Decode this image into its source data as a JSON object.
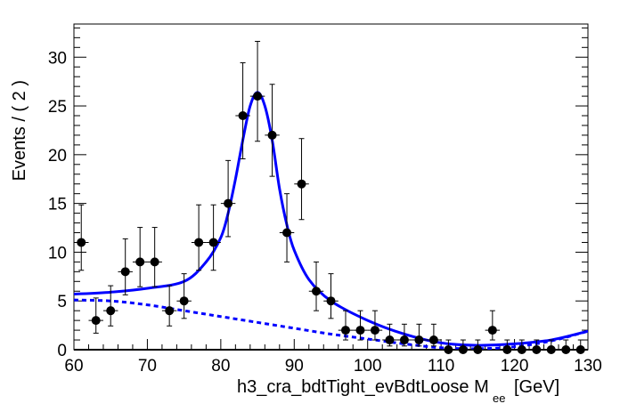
{
  "chart_data": {
    "type": "scatter",
    "title": "",
    "xlabel": "h3_cra_bdtTight_evBdtLoose  M",
    "xlabel_sub": "ee",
    "xlabel_unit": "[GeV]",
    "ylabel": "Events / ( 2 )",
    "xlim": [
      60,
      130
    ],
    "ylim": [
      0,
      33.4
    ],
    "xticks": [
      "60",
      "70",
      "80",
      "90",
      "100",
      "110",
      "120",
      "130"
    ],
    "yticks": [
      "0",
      "5",
      "10",
      "15",
      "20",
      "25",
      "30"
    ],
    "bin_width": 2,
    "data": {
      "x": [
        61,
        63,
        65,
        67,
        69,
        71,
        73,
        75,
        77,
        79,
        81,
        83,
        85,
        87,
        89,
        91,
        93,
        95,
        97,
        99,
        101,
        103,
        105,
        107,
        109,
        111,
        113,
        115,
        117,
        119,
        121,
        123,
        125,
        127,
        129
      ],
      "y": [
        11,
        3,
        4,
        8,
        9,
        9,
        4,
        5,
        11,
        11,
        15,
        24,
        26,
        22,
        12,
        17,
        6,
        5,
        2,
        2,
        2,
        1,
        1,
        1,
        1,
        0,
        0,
        0,
        2,
        0,
        0,
        0,
        0,
        0,
        0
      ]
    },
    "fit_total": {
      "x": [
        60,
        65,
        70,
        75,
        78,
        80,
        81,
        82,
        83,
        84,
        85,
        86,
        87,
        88,
        89,
        90,
        92,
        95,
        100,
        105,
        110,
        115,
        120,
        125,
        130
      ],
      "y": [
        5.7,
        5.9,
        6.3,
        7.0,
        9.0,
        11.5,
        14,
        17.5,
        21.5,
        25,
        26.4,
        25,
        21.5,
        16.5,
        12.8,
        10.2,
        7.2,
        5.0,
        3.0,
        1.6,
        0.7,
        0.45,
        0.6,
        1.0,
        1.9
      ]
    },
    "fit_background": {
      "x": [
        60,
        65,
        70,
        75,
        80,
        85,
        90,
        95,
        100,
        105,
        110,
        115,
        120,
        125,
        130
      ],
      "y": [
        5.1,
        5.0,
        4.6,
        4.0,
        3.4,
        2.8,
        2.2,
        1.6,
        1.1,
        0.6,
        0.2,
        0.1,
        0.3,
        0.9,
        1.9
      ]
    },
    "colors": {
      "data": "#000000",
      "fit": "#0000ff"
    }
  }
}
